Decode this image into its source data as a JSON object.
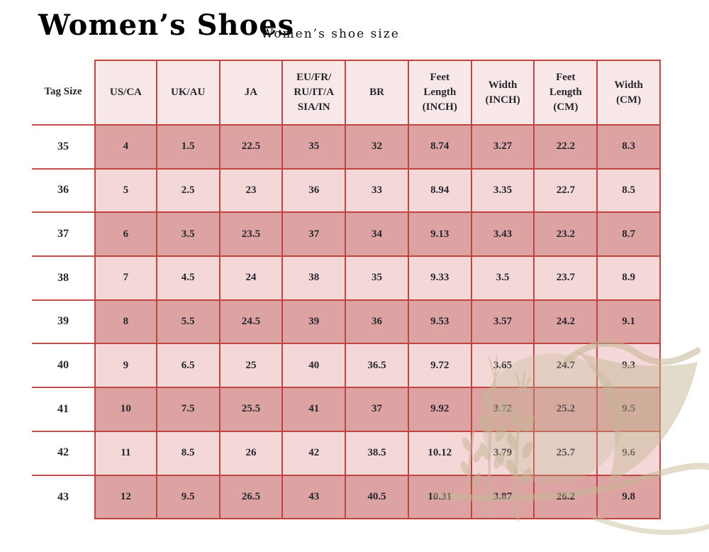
{
  "page": {
    "title": "Women’s Shoes",
    "subtitle": "Women’s shoe size"
  },
  "colors": {
    "table_border": "#c0443f",
    "header_bg": "#f9e8e8",
    "row_dark": "#dda2a2",
    "row_light": "#f4d8d8",
    "cell_text": "#26262e",
    "watermark_tan": "#c5b795"
  },
  "table": {
    "columns": [
      "Tag Size",
      "US/CA",
      "UK/AU",
      "JA",
      "EU/FR/\nRU/IT/A\nSIA/IN",
      "BR",
      "Feet\nLength\n(INCH)",
      "Width\n(INCH)",
      "Feet\nLength\n(CM)",
      "Width\n(CM)"
    ],
    "rows": [
      [
        "35",
        "4",
        "1.5",
        "22.5",
        "35",
        "32",
        "8.74",
        "3.27",
        "22.2",
        "8.3"
      ],
      [
        "36",
        "5",
        "2.5",
        "23",
        "36",
        "33",
        "8.94",
        "3.35",
        "22.7",
        "8.5"
      ],
      [
        "37",
        "6",
        "3.5",
        "23.5",
        "37",
        "34",
        "9.13",
        "3.43",
        "23.2",
        "8.7"
      ],
      [
        "38",
        "7",
        "4.5",
        "24",
        "38",
        "35",
        "9.33",
        "3.5",
        "23.7",
        "8.9"
      ],
      [
        "39",
        "8",
        "5.5",
        "24.5",
        "39",
        "36",
        "9.53",
        "3.57",
        "24.2",
        "9.1"
      ],
      [
        "40",
        "9",
        "6.5",
        "25",
        "40",
        "36.5",
        "9.72",
        "3.65",
        "24.7",
        "9.3"
      ],
      [
        "41",
        "10",
        "7.5",
        "25.5",
        "41",
        "37",
        "9.92",
        "3.72",
        "25.2",
        "9.5"
      ],
      [
        "42",
        "11",
        "8.5",
        "26",
        "42",
        "38.5",
        "10.12",
        "3.79",
        "25.7",
        "9.6"
      ],
      [
        "43",
        "12",
        "9.5",
        "26.5",
        "43",
        "40.5",
        "10.31",
        "3.87",
        "26.2",
        "9.8"
      ]
    ]
  },
  "watermark": {
    "icon": "wheat-sheaf-and-sail"
  }
}
